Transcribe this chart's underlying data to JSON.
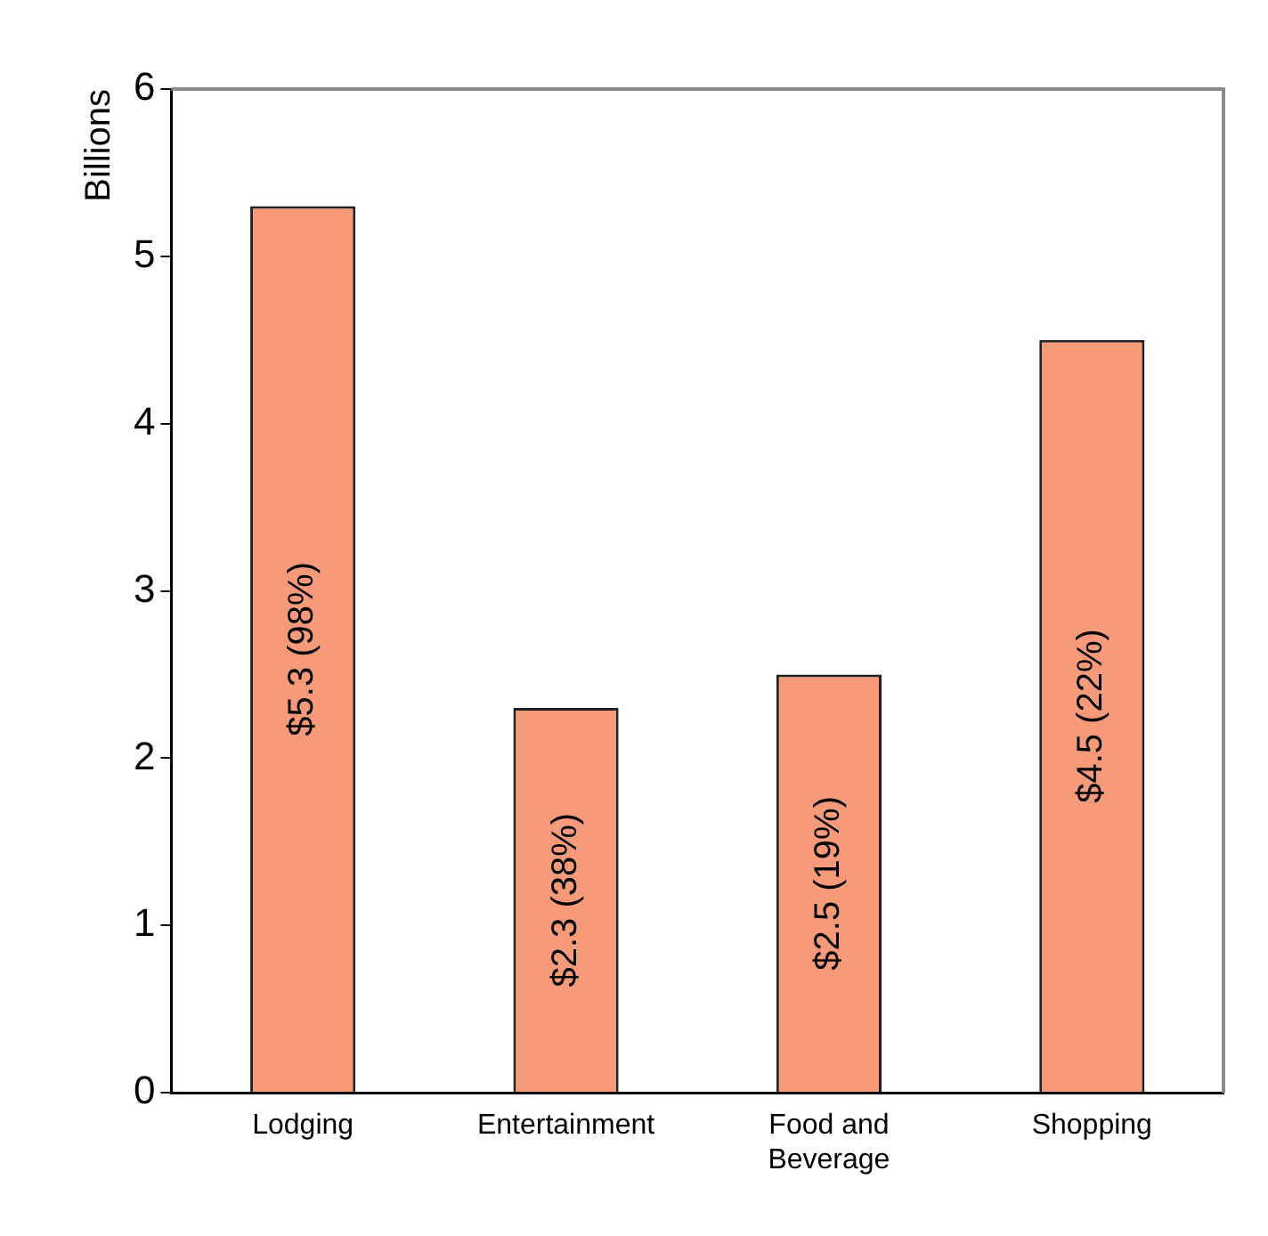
{
  "chart_data": {
    "type": "bar",
    "ylabel": "Billions",
    "categories": [
      "Lodging",
      "Entertainment",
      "Food and Beverage",
      "Shopping"
    ],
    "values": [
      5.3,
      2.3,
      2.5,
      4.5
    ],
    "value_labels": [
      "$5.3 (98%)",
      "$2.3 (38%)",
      "$2.5 (19%)",
      "$4.5 (22%)"
    ],
    "color": "#f79a7a",
    "ylim": [
      0,
      6
    ],
    "yticks": [
      0,
      1,
      2,
      3,
      4,
      5,
      6
    ],
    "grid": false,
    "legend": false
  }
}
